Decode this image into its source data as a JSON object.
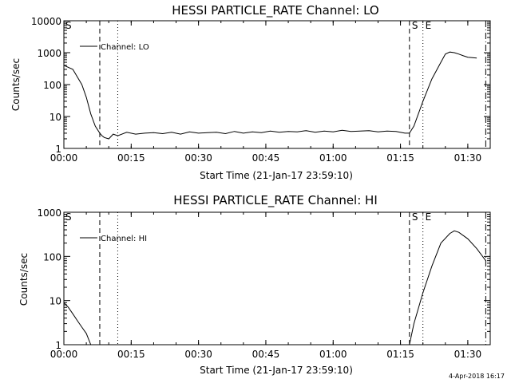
{
  "timestamp": "4-Apr-2018 16:17",
  "chart_data": [
    {
      "type": "line",
      "title": "HESSI PARTICLE_RATE Channel: LO",
      "xlabel": "Start Time (21-Jan-17 23:59:10)",
      "ylabel": "Counts/sec",
      "yscale": "log",
      "xlim": [
        "00:00",
        "01:35"
      ],
      "ylim": [
        1,
        10000
      ],
      "x_ticks": [
        "00:00",
        "00:15",
        "00:30",
        "00:45",
        "01:00",
        "01:15",
        "01:30"
      ],
      "y_ticks": [
        "1",
        "10",
        "100",
        "1000",
        "10000"
      ],
      "legend": "top-left",
      "legend_entries": [
        "Channel: LO"
      ],
      "markers": [
        {
          "label": "S",
          "x": "00:00",
          "style": "none"
        },
        {
          "label": "",
          "x": "00:08",
          "style": "dashed"
        },
        {
          "label": "",
          "x": "00:12",
          "style": "dotted"
        },
        {
          "label": "S",
          "x": "01:17",
          "style": "dashed"
        },
        {
          "label": "E",
          "x": "01:20",
          "style": "dotted"
        },
        {
          "label": "",
          "x": "01:34",
          "style": "dashdot"
        }
      ],
      "series": [
        {
          "name": "Channel: LO",
          "x": [
            "00:00",
            "00:02",
            "00:04",
            "00:05",
            "00:06",
            "00:07",
            "00:08",
            "00:08.5",
            "00:09",
            "00:10",
            "00:11",
            "00:12",
            "00:14",
            "00:16",
            "00:18",
            "00:20",
            "00:22",
            "00:24",
            "00:26",
            "00:28",
            "00:30",
            "00:32",
            "00:34",
            "00:36",
            "00:38",
            "00:40",
            "00:42",
            "00:44",
            "00:46",
            "00:48",
            "00:50",
            "00:52",
            "00:54",
            "00:56",
            "00:58",
            "01:00",
            "01:02",
            "01:04",
            "01:06",
            "01:08",
            "01:10",
            "01:12",
            "01:14",
            "01:16",
            "01:17",
            "01:18",
            "01:20",
            "01:22",
            "01:24",
            "01:25",
            "01:26",
            "01:27",
            "01:28",
            "01:29",
            "01:30",
            "01:31",
            "01:32"
          ],
          "y": [
            400,
            300,
            100,
            40,
            12,
            5,
            3,
            2.5,
            2.2,
            2,
            2.8,
            2.5,
            3.2,
            2.8,
            3.0,
            3.1,
            2.9,
            3.2,
            2.8,
            3.3,
            3.0,
            3.1,
            3.2,
            2.9,
            3.4,
            3.0,
            3.3,
            3.1,
            3.5,
            3.2,
            3.4,
            3.3,
            3.6,
            3.2,
            3.5,
            3.3,
            3.7,
            3.4,
            3.5,
            3.6,
            3.3,
            3.5,
            3.4,
            3.0,
            3.0,
            5,
            30,
            150,
            500,
            900,
            1050,
            1000,
            900,
            800,
            720,
            700,
            680
          ]
        }
      ]
    },
    {
      "type": "line",
      "title": "HESSI PARTICLE_RATE Channel: HI",
      "xlabel": "Start Time (21-Jan-17 23:59:10)",
      "ylabel": "Counts/sec",
      "yscale": "log",
      "xlim": [
        "00:00",
        "01:35"
      ],
      "ylim": [
        1,
        1000
      ],
      "x_ticks": [
        "00:00",
        "00:15",
        "00:30",
        "00:45",
        "01:00",
        "01:15",
        "01:30"
      ],
      "y_ticks": [
        "1",
        "10",
        "100",
        "1000"
      ],
      "legend": "top-left",
      "legend_entries": [
        "Channel: HI"
      ],
      "markers": [
        {
          "label": "S",
          "x": "00:00",
          "style": "none"
        },
        {
          "label": "",
          "x": "00:08",
          "style": "dashed"
        },
        {
          "label": "",
          "x": "00:12",
          "style": "dotted"
        },
        {
          "label": "S",
          "x": "01:17",
          "style": "dashed"
        },
        {
          "label": "E",
          "x": "01:20",
          "style": "dotted"
        },
        {
          "label": "",
          "x": "01:34",
          "style": "dashdot"
        }
      ],
      "series": [
        {
          "name": "Channel: HI",
          "segments": [
            {
              "x": [
                "00:00",
                "00:01",
                "00:02",
                "00:03",
                "00:04",
                "00:05",
                "00:06"
              ],
              "y": [
                9,
                7,
                5,
                3.5,
                2.5,
                1.8,
                1.0
              ]
            },
            {
              "x": [
                "01:17",
                "01:18",
                "01:20",
                "01:22",
                "01:24",
                "01:26",
                "01:27",
                "01:28",
                "01:30",
                "01:32",
                "01:34"
              ],
              "y": [
                1.0,
                3,
                15,
                60,
                200,
                330,
                380,
                350,
                250,
                150,
                80
              ]
            }
          ]
        }
      ]
    }
  ]
}
